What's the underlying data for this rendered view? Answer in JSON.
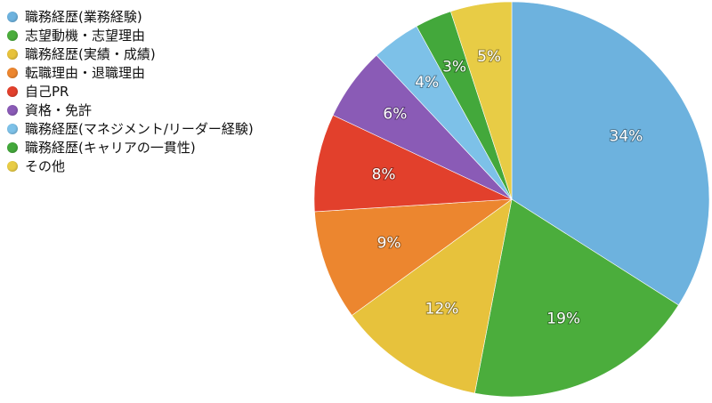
{
  "chart_data": {
    "type": "pie",
    "title": "",
    "slices": [
      {
        "label": "職務経歴(業務経験)",
        "value": 34,
        "value_label": "34%",
        "color": "#6db2de"
      },
      {
        "label": "志望動機・志望理由",
        "value": 19,
        "value_label": "19%",
        "color": "#4bad3c"
      },
      {
        "label": "職務経歴(実績・成績)",
        "value": 12,
        "value_label": "12%",
        "color": "#e7c23c"
      },
      {
        "label": "転職理由・退職理由",
        "value": 9,
        "value_label": "9%",
        "color": "#ec862f"
      },
      {
        "label": "自己PR",
        "value": 8,
        "value_label": "8%",
        "color": "#e2402c"
      },
      {
        "label": "資格・免許",
        "value": 6,
        "value_label": "6%",
        "color": "#8a5bb6"
      },
      {
        "label": "職務経歴(マネジメント/リーダー経験)",
        "value": 4,
        "value_label": "4%",
        "color": "#7dc1e8"
      },
      {
        "label": "職務経歴(キャリアの一貫性)",
        "value": 3,
        "value_label": "3%",
        "color": "#43a83b"
      },
      {
        "label": "その他",
        "value": 5,
        "value_label": "5%",
        "color": "#e8cc45"
      }
    ],
    "legend": "top-left",
    "start": "12 o'clock",
    "direction": "clockwise"
  }
}
